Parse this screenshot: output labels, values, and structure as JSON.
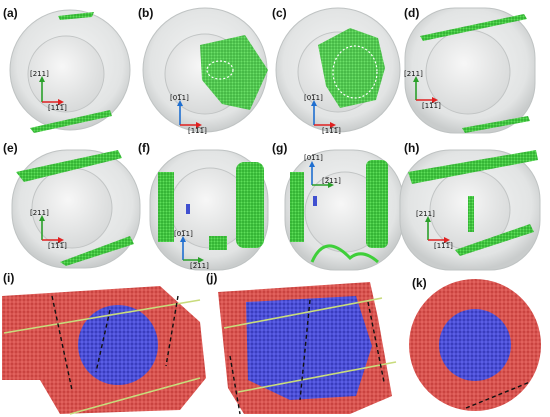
{
  "panels": [
    {
      "label": "(a)",
      "axes": {
        "up": "[211]",
        "right": "[11̅1̅]"
      }
    },
    {
      "label": "(b)",
      "axes": {
        "up": "[01̅1]",
        "right": "[11̅1̅]"
      }
    },
    {
      "label": "(c)",
      "axes": {
        "up": "[01̅1]",
        "right": "[11̅1̅]"
      }
    },
    {
      "label": "(d)",
      "axes": {
        "up": "[211]",
        "right": "[11̅1̅]"
      }
    },
    {
      "label": "(e)",
      "axes": {
        "up": "[211]",
        "right": "[11̅1̅]"
      }
    },
    {
      "label": "(f)",
      "axes": {
        "up": "[01̅1]",
        "right": "[2̅11]"
      }
    },
    {
      "label": "(g)",
      "axes": {
        "up": "[01̅1]",
        "right": "[2̅11]"
      }
    },
    {
      "label": "(h)",
      "axes": {
        "up": "[211]",
        "right": "[11̅1̅]"
      }
    },
    {
      "label": "(i)"
    },
    {
      "label": "(j)"
    },
    {
      "label": "(k)"
    }
  ],
  "colors": {
    "dislocation_green": "#3fcf3a",
    "shell_gray": "#e4e6e6",
    "matrix_red": "#d9534f",
    "core_blue": "#4b4fd6",
    "axis_red": "#e02020",
    "axis_green": "#2aa02a",
    "axis_blue": "#1f6fd0",
    "plane_line": "#b8d06a"
  }
}
